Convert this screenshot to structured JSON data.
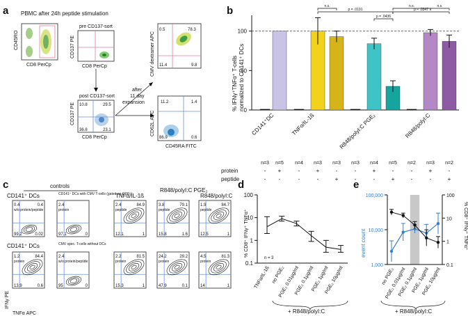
{
  "panels": {
    "a": "a",
    "b": "b",
    "c": "c",
    "d": "d",
    "e": "e"
  },
  "panel_a": {
    "title": "PBMC after 24h peptide stimulation",
    "plot1": {
      "ylabel": "CD45RO",
      "xlabel": "CD8 PerCp"
    },
    "plot2": {
      "subtitle": "pre CD137-sort",
      "ylabel": "CD137 PE",
      "xlabel": "CD8 PerCp"
    },
    "plot3": {
      "subtitle": "post CD137-sort",
      "ylabel": "CD137 PE",
      "xlabel": "CD8 PerCp",
      "q": [
        "10.8",
        "29.5",
        "36.8",
        "23.1"
      ]
    },
    "plot4": {
      "ylabel": "CMV dextramer APC",
      "q": [
        "0.5",
        "78.3",
        "11.4",
        "9.8"
      ]
    },
    "plot5": {
      "ylabel": "CD62L APC",
      "xlabel": "CD45RA FITC",
      "q": [
        "11.2",
        "1.4",
        "86.9",
        "0.6"
      ]
    },
    "arrow_text": [
      "after",
      "11 day",
      "expansion"
    ]
  },
  "panel_b": {
    "ylabel_line1": "% IFNγ⁺TNFα⁺ T-cells",
    "ylabel_line2": "normalized to CD141⁺ DCs",
    "group_labels": [
      "CD141⁺DC",
      "TNFα/IL-1ß",
      "R848/polyI:C PGE₂",
      "R848/polyI:C"
    ],
    "row_labels": {
      "protein": "protein",
      "peptide": "peptide"
    },
    "n_row": [
      "n=3",
      "n=5",
      "n=4",
      "n=3",
      "n=3",
      "n=3",
      "n=4",
      "n=5",
      "n=2",
      "n=3",
      "n=2"
    ],
    "protein_row": [
      "-",
      "+",
      "-",
      "+",
      "-",
      "-",
      "+",
      "-",
      "-",
      "+",
      "-"
    ],
    "peptide_row": [
      "-",
      "-",
      "-",
      "-",
      "+",
      "-",
      "-",
      "+",
      "-",
      "-",
      "+"
    ],
    "sig": [
      "n.s.",
      "p = .0191",
      "p = .0436",
      "n.s.",
      "p = .0347",
      "n.s."
    ]
  },
  "panel_c": {
    "controls": "controls",
    "dc1": "CD141⁺ DCs",
    "dc2": "CD141⁺ DCs",
    "note1": "CD141⁺ DCs with CMV T-cells (gated on CD8⁺)",
    "note2": "CMV spec. T-cells without DCs",
    "noprot": "w/o protein/peptide",
    "cond1": "TNFα/IL-1ß",
    "cond2": "R848/polyI:C PGE₂",
    "cond3": "R848/polyI:C",
    "ylabel": "IFNγ PE",
    "xlabel": "TNFα APC",
    "plots": [
      {
        "q": [
          "0.4",
          "0.4",
          "99.2",
          "0.02"
        ],
        "tag": "w/o protein/peptide"
      },
      {
        "q": [
          "2.4",
          "",
          "97.1",
          "0"
        ],
        "tag": "protein"
      },
      {
        "q": [
          "2.4",
          "84.9",
          "12.1",
          "1"
        ],
        "tag": "peptide"
      },
      {
        "q": [
          "3.8",
          "79.1",
          "15.8",
          "1.6"
        ],
        "tag": "peptide"
      },
      {
        "q": [
          "1.9",
          "84.7",
          "12.5",
          "1"
        ],
        "tag": "peptide"
      },
      {
        "q": [
          "1.2",
          "84.4",
          "13.9",
          "0.6"
        ],
        "tag": "protein"
      },
      {
        "q": [
          "2.4",
          "",
          "95",
          "0"
        ],
        "tag": "w/o protein/peptide"
      },
      {
        "q": [
          "2.2",
          "81.5",
          "15.3",
          "1"
        ],
        "tag": "protein"
      },
      {
        "q": [
          "24.2",
          "29.2",
          "47.9",
          "0.1"
        ],
        "tag": "protein"
      },
      {
        "q": [
          "4.5",
          "81.3",
          "14",
          "1"
        ],
        "tag": "protein"
      }
    ]
  },
  "panel_d": {
    "ylabel": "% CD8⁺ IFNγ⁺ TNFα⁺",
    "n_note": "n = 3",
    "bottom_label": "+ R848/polyI:C"
  },
  "panel_e": {
    "ylabel_left": "event count",
    "ylabel_right": "% CD8⁺ IFNγ⁺ TNFα⁺",
    "bottom_label": "+ R848/polyI:C"
  },
  "colors": {
    "bar_lavender": "#c9c3e6",
    "bar_yellow": "#f2d21a",
    "bar_gold": "#d4b418",
    "bar_teal": "#3ec4c6",
    "bar_darkteal": "#16a49e",
    "bar_violet": "#b487c6",
    "bar_purple": "#8e5aa3",
    "blue_series": "#3a7dc9",
    "shade": "#c8c8c8"
  },
  "chart_data": [
    {
      "type": "bar",
      "panel": "b",
      "categories": [
        "CD141-DC none",
        "CD141-DC protein",
        "TNFα/IL-1ß none",
        "TNFα/IL-1ß protein",
        "TNFα/IL-1ß peptide",
        "R848/polyI:C PGE₂ none",
        "R848/polyI:C PGE₂ protein",
        "R848/polyI:C PGE₂ peptide",
        "R848/polyI:C none",
        "R848/polyI:C protein",
        "R848/polyI:C peptide"
      ],
      "values": [
        1,
        100,
        1,
        100,
        93,
        1,
        84,
        30,
        1,
        98,
        87
      ],
      "errors": [
        0,
        0,
        0,
        17,
        7,
        0,
        7,
        7,
        0,
        4,
        8
      ],
      "ylim": [
        0,
        120
      ],
      "yticks": [
        0,
        50,
        100
      ],
      "reference_line": 100,
      "ylabel": "% IFNγ⁺TNFα⁺ T-cells normalized to CD141⁺ DCs"
    },
    {
      "type": "line",
      "panel": "d",
      "categories": [
        "TNFα/IL-1ß",
        "no PGE₂",
        "PGE₂ 0.01µg/ml",
        "PGE₂ 0.1µg/ml",
        "PGE₂ 1µg/ml",
        "PGE₂ 10µg/ml"
      ],
      "values": [
        4,
        9,
        5.5,
        1.6,
        0.5,
        0.4
      ],
      "errors_up": [
        7,
        2.5,
        1.5,
        0.9,
        0.5,
        0.2
      ],
      "errors_down": [
        2,
        2,
        1.2,
        0.7,
        0.2,
        0.1
      ],
      "yscale": "log",
      "ylim": [
        0.1,
        100
      ],
      "yticks": [
        0.1,
        1,
        10,
        100
      ],
      "ylabel": "% CD8⁺ IFNγ⁺ TNFα⁺",
      "xlabel": "+ R848/polyI:C"
    },
    {
      "type": "line",
      "panel": "e",
      "categories": [
        "no PGE₂",
        "PGE₂ 0.01µg/ml",
        "PGE₂ 0.1µg/ml",
        "PGE₂ 1µg/ml",
        "PGE₂ 10µg/ml"
      ],
      "series": [
        {
          "name": "event count",
          "axis": "left",
          "values": [
            2400,
            8500,
            10500,
            8000,
            15000
          ],
          "errors": [
            0.3,
            0.25,
            0.12,
            0.25,
            0.3
          ]
        },
        {
          "name": "% CD8⁺ IFNγ⁺ TNFα⁺",
          "axis": "right",
          "values": [
            18,
            13,
            5,
            1.4,
            0.9
          ],
          "errors": [
            0.12,
            0.1,
            0.15,
            0.35,
            0.25
          ]
        }
      ],
      "shaded_category": "PGE₂ 0.1µg/ml",
      "left_yscale": "log",
      "left_ylim": [
        1000,
        100000
      ],
      "left_yticks": [
        1000,
        10000,
        100000
      ],
      "left_ytick_labels": [
        "1,000",
        "10,000",
        "100,000"
      ],
      "right_yscale": "log",
      "right_ylim": [
        0.1,
        100
      ],
      "right_yticks": [
        0.1,
        1,
        10,
        100
      ],
      "xlabel": "+ R848/polyI:C"
    }
  ]
}
